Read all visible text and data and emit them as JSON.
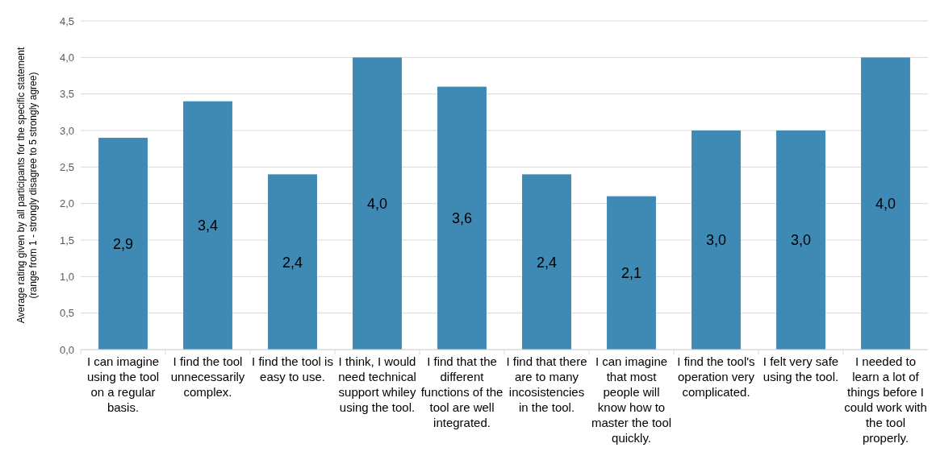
{
  "chart_data": {
    "type": "bar",
    "ylabel": "Average rating given by all participants for the specific statement\n(range from 1 - strongly disagree to 5 strongly agree)",
    "categories": [
      "I can imagine using the tool on a regular basis.",
      "I find the tool unnecessarily complex.",
      "I find the tool is easy to use.",
      "I think, I would need technical support whiley using the tool.",
      "I find that the different functions of the tool are well integrated.",
      "I find that there are to many incosistencies in the tool.",
      "I can imagine that most people will know how to master the tool quickly.",
      "I find the tool's operation very complicated.",
      "I felt very safe using the tool.",
      "I needed to learn a lot of things before I could work with the tool properly."
    ],
    "values": [
      2.9,
      3.4,
      2.4,
      4.0,
      3.6,
      2.4,
      2.1,
      3.0,
      3.0,
      4.0
    ],
    "value_labels": [
      "2,9",
      "3,4",
      "2,4",
      "4,0",
      "3,6",
      "2,4",
      "2,1",
      "3,0",
      "3,0",
      "4,0"
    ],
    "color": "#3f89b5",
    "ylim": [
      0,
      4.5
    ],
    "yticks": [
      {
        "value": 0,
        "label": "0,0"
      },
      {
        "value": 0.5,
        "label": "0,5"
      },
      {
        "value": 1,
        "label": "1,0"
      },
      {
        "value": 1.5,
        "label": "1,5"
      },
      {
        "value": 2,
        "label": "2,0"
      },
      {
        "value": 2.5,
        "label": "2,5"
      },
      {
        "value": 3,
        "label": "3,0"
      },
      {
        "value": 3.5,
        "label": "3,5"
      },
      {
        "value": 4,
        "label": "4,0"
      },
      {
        "value": 4.5,
        "label": "4,5"
      }
    ],
    "grid": "y"
  }
}
